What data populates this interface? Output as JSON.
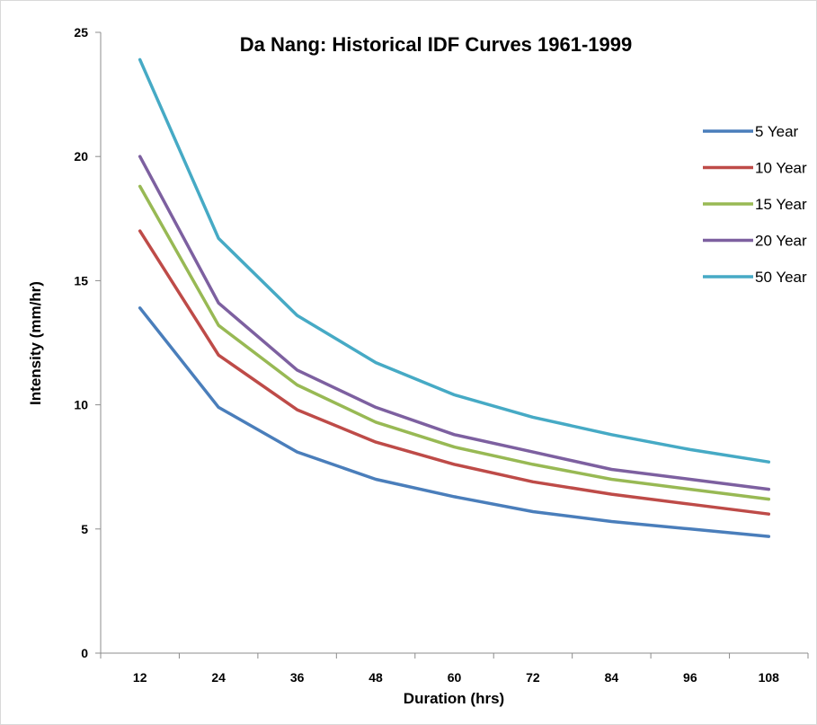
{
  "chart_data": {
    "type": "line",
    "title": "Da Nang: Historical IDF Curves 1961-1999",
    "xlabel": "Duration (hrs)",
    "ylabel": "Intensity (mm/hr)",
    "categories": [
      "12",
      "24",
      "36",
      "48",
      "60",
      "72",
      "84",
      "96",
      "108"
    ],
    "ylim": [
      0,
      25
    ],
    "yticks": [
      "0",
      "5",
      "10",
      "15",
      "20",
      "25"
    ],
    "grid": false,
    "legend_position": "right",
    "series": [
      {
        "name": "5 Year",
        "color": "#4a7ebb",
        "values": [
          13.9,
          9.9,
          8.1,
          7.0,
          6.3,
          5.7,
          5.3,
          5.0,
          4.7
        ]
      },
      {
        "name": "10 Year",
        "color": "#be4b48",
        "values": [
          17.0,
          12.0,
          9.8,
          8.5,
          7.6,
          6.9,
          6.4,
          6.0,
          5.6
        ]
      },
      {
        "name": "15 Year",
        "color": "#98b954",
        "values": [
          18.8,
          13.2,
          10.8,
          9.3,
          8.3,
          7.6,
          7.0,
          6.6,
          6.2
        ]
      },
      {
        "name": "20 Year",
        "color": "#7d60a0",
        "values": [
          20.0,
          14.1,
          11.4,
          9.9,
          8.8,
          8.1,
          7.4,
          7.0,
          6.6
        ]
      },
      {
        "name": "50 Year",
        "color": "#46aac5",
        "values": [
          23.9,
          16.7,
          13.6,
          11.7,
          10.4,
          9.5,
          8.8,
          8.2,
          7.7
        ]
      }
    ]
  }
}
